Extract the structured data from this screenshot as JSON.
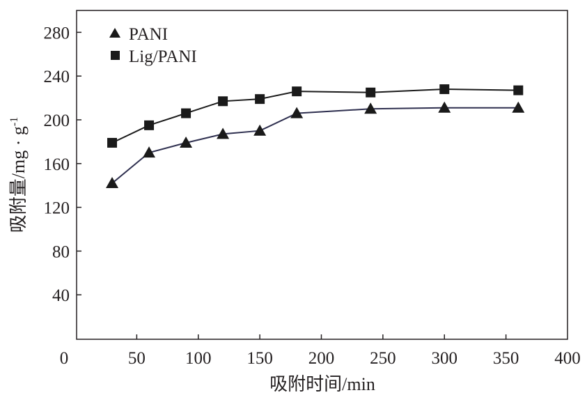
{
  "chart_data": {
    "type": "line",
    "title": "",
    "xlabel": "吸附时间/min",
    "ylabel": "吸附量/mg · g",
    "ylabel_superscript": "-1",
    "xlim": [
      0,
      400
    ],
    "ylim": [
      0,
      300
    ],
    "xticks": [
      0,
      50,
      100,
      150,
      200,
      250,
      300,
      350,
      400
    ],
    "yticks": [
      40,
      80,
      120,
      160,
      200,
      240,
      280
    ],
    "grid": false,
    "legend_position": "top-left",
    "x": [
      30,
      60,
      90,
      120,
      150,
      180,
      240,
      300,
      360
    ],
    "series": [
      {
        "name": "PANI",
        "marker": "triangle",
        "color": "#2e2f4f",
        "values": [
          142,
          170,
          179,
          187,
          190,
          206,
          210,
          211,
          211
        ]
      },
      {
        "name": "Lig/PANI",
        "marker": "square",
        "color": "#1a1a1a",
        "values": [
          179,
          195,
          206,
          217,
          219,
          226,
          225,
          228,
          227
        ]
      }
    ]
  }
}
